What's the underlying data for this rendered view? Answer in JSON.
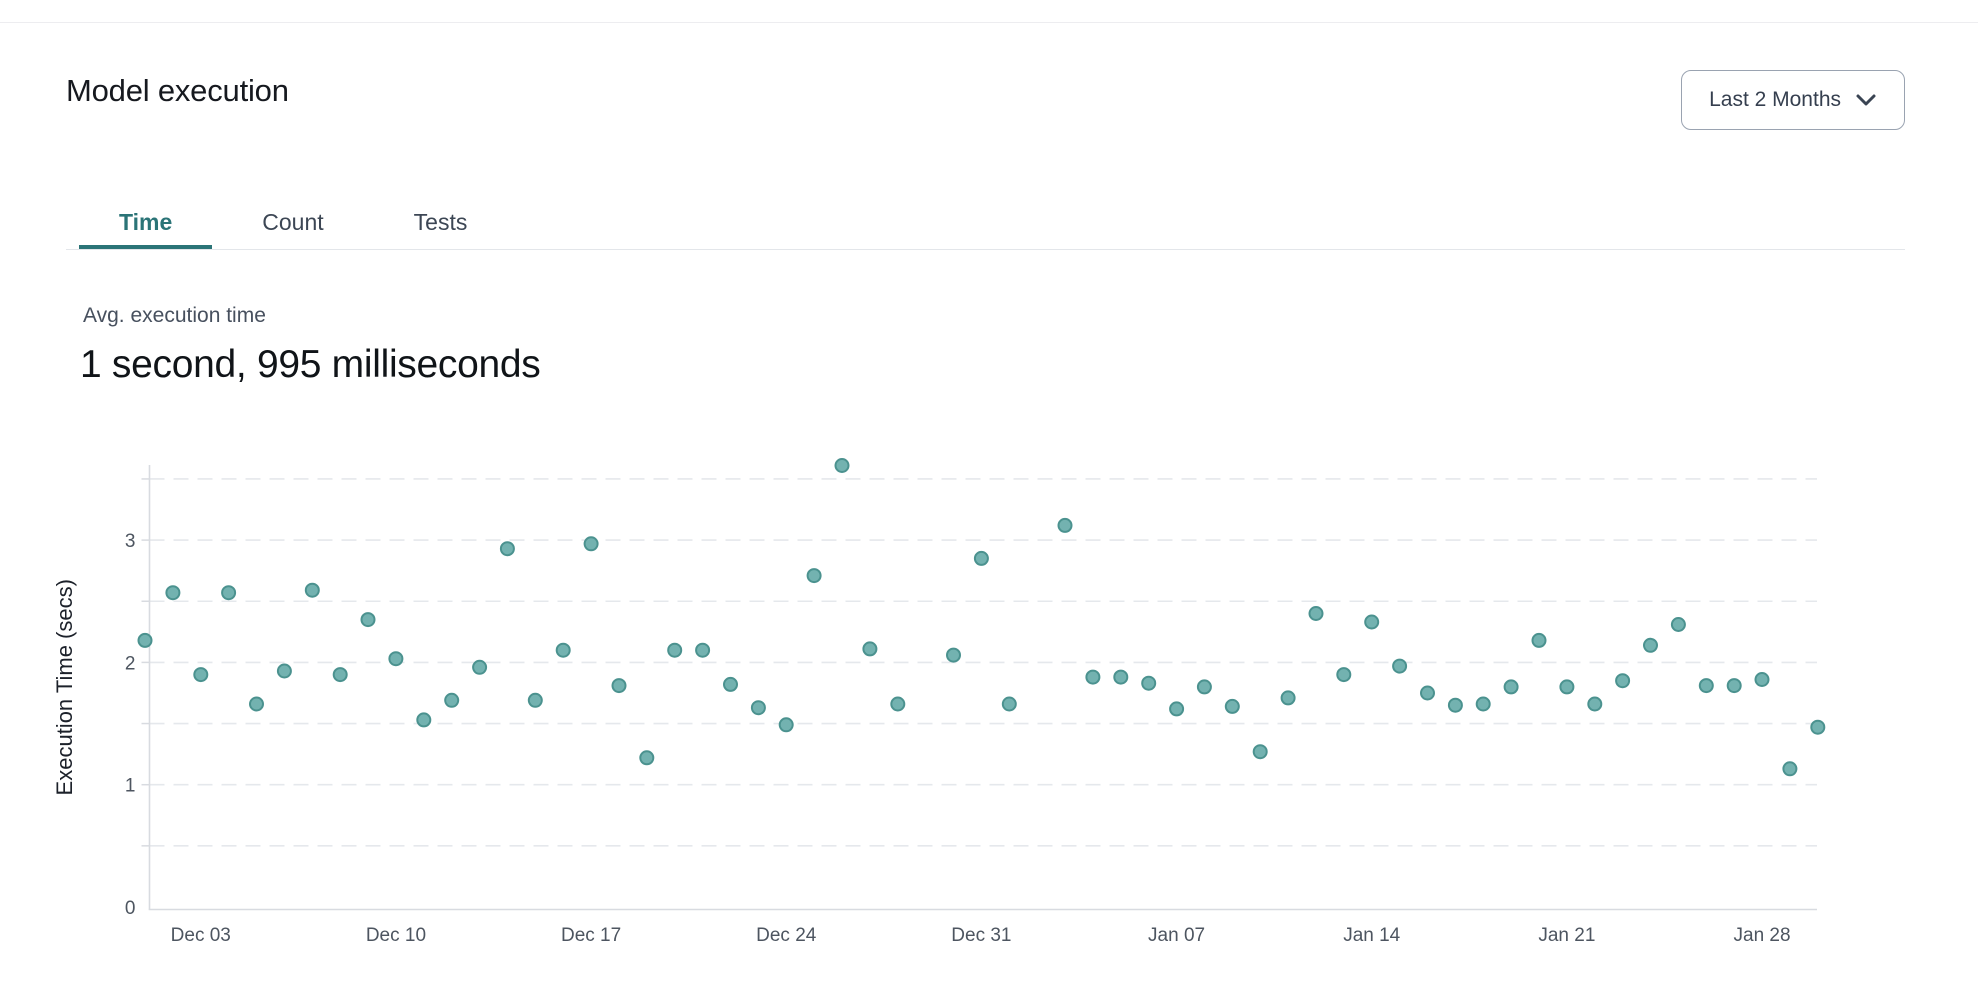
{
  "header": {
    "title": "Model execution"
  },
  "range_selector": {
    "label": "Last 2 Months",
    "icon": "chevron-down-icon"
  },
  "tabs": [
    {
      "label": "Time",
      "active": true
    },
    {
      "label": "Count",
      "active": false
    },
    {
      "label": "Tests",
      "active": false
    }
  ],
  "stat": {
    "label": "Avg. execution time",
    "value": "1 second, 995 milliseconds"
  },
  "chart_data": {
    "type": "scatter",
    "title": "",
    "xlabel": "",
    "ylabel": "Execution Time (secs)",
    "ylim": [
      0,
      3.7
    ],
    "yticks": [
      0,
      1,
      2,
      3
    ],
    "grid": {
      "style": "dashed",
      "interval": 0.5,
      "max": 3.5
    },
    "legend": "none",
    "x_tick_labels": [
      "Dec 03",
      "Dec 10",
      "Dec 17",
      "Dec 24",
      "Dec 31",
      "Jan 07",
      "Jan 14",
      "Jan 21",
      "Jan 28"
    ],
    "x_tick_days": [
      2,
      9,
      16,
      23,
      30,
      37,
      44,
      51,
      58
    ],
    "points": [
      {
        "date": "Dec 01",
        "day": 0,
        "value": 2.18
      },
      {
        "date": "Dec 02",
        "day": 1,
        "value": 2.57
      },
      {
        "date": "Dec 03",
        "day": 2,
        "value": 1.9
      },
      {
        "date": "Dec 04",
        "day": 3,
        "value": 2.57
      },
      {
        "date": "Dec 05",
        "day": 4,
        "value": 1.66
      },
      {
        "date": "Dec 06",
        "day": 5,
        "value": 1.93
      },
      {
        "date": "Dec 07",
        "day": 6,
        "value": 2.59
      },
      {
        "date": "Dec 08",
        "day": 7,
        "value": 1.9
      },
      {
        "date": "Dec 09",
        "day": 8,
        "value": 2.35
      },
      {
        "date": "Dec 10",
        "day": 9,
        "value": 2.03
      },
      {
        "date": "Dec 11",
        "day": 10,
        "value": 1.53
      },
      {
        "date": "Dec 12",
        "day": 11,
        "value": 1.69
      },
      {
        "date": "Dec 13",
        "day": 12,
        "value": 1.96
      },
      {
        "date": "Dec 14",
        "day": 13,
        "value": 2.93
      },
      {
        "date": "Dec 15",
        "day": 14,
        "value": 1.69
      },
      {
        "date": "Dec 16",
        "day": 15,
        "value": 2.1
      },
      {
        "date": "Dec 17",
        "day": 16,
        "value": 2.97
      },
      {
        "date": "Dec 18",
        "day": 17,
        "value": 1.81
      },
      {
        "date": "Dec 19",
        "day": 18,
        "value": 1.22
      },
      {
        "date": "Dec 20",
        "day": 19,
        "value": 2.1
      },
      {
        "date": "Dec 21",
        "day": 20,
        "value": 2.1
      },
      {
        "date": "Dec 22",
        "day": 21,
        "value": 1.82
      },
      {
        "date": "Dec 23",
        "day": 22,
        "value": 1.63
      },
      {
        "date": "Dec 24",
        "day": 23,
        "value": 1.49
      },
      {
        "date": "Dec 25",
        "day": 24,
        "value": 2.71
      },
      {
        "date": "Dec 26",
        "day": 25,
        "value": 3.61
      },
      {
        "date": "Dec 27",
        "day": 26,
        "value": 2.11
      },
      {
        "date": "Dec 28",
        "day": 27,
        "value": 1.66
      },
      {
        "date": "Dec 30",
        "day": 29,
        "value": 2.06
      },
      {
        "date": "Dec 31",
        "day": 30,
        "value": 2.85
      },
      {
        "date": "Jan 01",
        "day": 31,
        "value": 1.66
      },
      {
        "date": "Jan 03",
        "day": 33,
        "value": 3.12
      },
      {
        "date": "Jan 04",
        "day": 34,
        "value": 1.88
      },
      {
        "date": "Jan 05",
        "day": 35,
        "value": 1.88
      },
      {
        "date": "Jan 06",
        "day": 36,
        "value": 1.83
      },
      {
        "date": "Jan 07",
        "day": 37,
        "value": 1.62
      },
      {
        "date": "Jan 08",
        "day": 38,
        "value": 1.8
      },
      {
        "date": "Jan 09",
        "day": 39,
        "value": 1.64
      },
      {
        "date": "Jan 10",
        "day": 40,
        "value": 1.27
      },
      {
        "date": "Jan 11",
        "day": 41,
        "value": 1.71
      },
      {
        "date": "Jan 12",
        "day": 42,
        "value": 2.4
      },
      {
        "date": "Jan 13",
        "day": 43,
        "value": 1.9
      },
      {
        "date": "Jan 14",
        "day": 44,
        "value": 2.33
      },
      {
        "date": "Jan 15",
        "day": 45,
        "value": 1.97
      },
      {
        "date": "Jan 16",
        "day": 46,
        "value": 1.75
      },
      {
        "date": "Jan 17",
        "day": 47,
        "value": 1.65
      },
      {
        "date": "Jan 18",
        "day": 48,
        "value": 1.66
      },
      {
        "date": "Jan 19",
        "day": 49,
        "value": 1.8
      },
      {
        "date": "Jan 20",
        "day": 50,
        "value": 2.18
      },
      {
        "date": "Jan 21",
        "day": 51,
        "value": 1.8
      },
      {
        "date": "Jan 22",
        "day": 52,
        "value": 1.66
      },
      {
        "date": "Jan 23",
        "day": 53,
        "value": 1.85
      },
      {
        "date": "Jan 24",
        "day": 54,
        "value": 2.14
      },
      {
        "date": "Jan 25",
        "day": 55,
        "value": 2.31
      },
      {
        "date": "Jan 26",
        "day": 56,
        "value": 1.81
      },
      {
        "date": "Jan 27",
        "day": 57,
        "value": 1.81
      },
      {
        "date": "Jan 28",
        "day": 58,
        "value": 1.86
      },
      {
        "date": "Jan 29",
        "day": 59,
        "value": 1.13
      },
      {
        "date": "Jan 30",
        "day": 60,
        "value": 1.47
      }
    ],
    "colors": {
      "point_fill": "#73b2b0",
      "point_stroke": "#4b928f",
      "grid": "#e5e8ec",
      "axis": "#d8dbe0",
      "tick_label": "#4d5560",
      "axis_title": "#1c212a",
      "accent_teal": "#2b7477"
    }
  }
}
